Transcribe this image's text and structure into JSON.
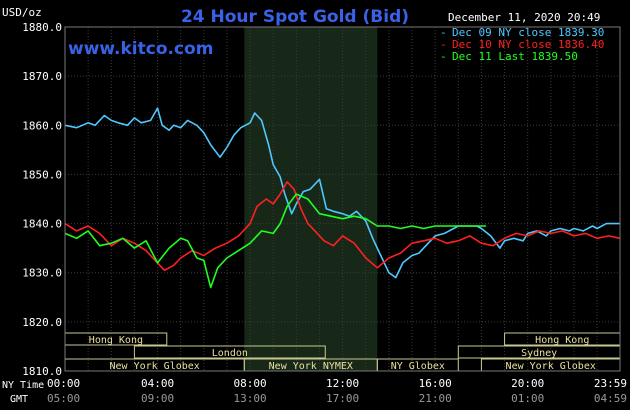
{
  "chart_data": {
    "type": "line",
    "title": "24 Hour Spot Gold (Bid)",
    "brand": "www.kitco.com",
    "timestamp": "December 11, 2020 20:49",
    "ylabel": "USD/oz",
    "ylim": [
      1810,
      1880
    ],
    "y_ticks": [
      "1880.0",
      "1870.0",
      "1860.0",
      "1850.0",
      "1840.0",
      "1830.0",
      "1820.0",
      "1810.0"
    ],
    "x_axis": {
      "ny_label": "NY Time",
      "gmt_label": "GMT",
      "ny_ticks": [
        "00:00",
        "04:00",
        "08:00",
        "12:00",
        "16:00",
        "20:00",
        "23:59"
      ],
      "gmt_ticks": [
        "05:00",
        "09:00",
        "13:00",
        "17:00",
        "21:00",
        "01:00",
        "04:59"
      ]
    },
    "grid": true,
    "legend_position": "top-right",
    "highlight_band_hours": [
      7.75,
      13.5
    ],
    "sessions": [
      {
        "label": "Hong Kong",
        "start": 0,
        "end": 4.4,
        "row": 0
      },
      {
        "label": "Hong Kong",
        "start": 19.0,
        "end": 23.99,
        "row": 0
      },
      {
        "label": "London",
        "start": 3.0,
        "end": 11.25,
        "row": 1
      },
      {
        "label": "Sydney",
        "start": 17.0,
        "end": 23.99,
        "row": 1
      },
      {
        "label": "New York Globex",
        "start": 0,
        "end": 7.75,
        "row": 2
      },
      {
        "label": "New York NYMEX",
        "start": 7.75,
        "end": 13.5,
        "row": 2
      },
      {
        "label": "NY Globex",
        "start": 13.5,
        "end": 17.0,
        "row": 2
      },
      {
        "label": "New York Globex",
        "start": 18.0,
        "end": 23.99,
        "row": 2
      }
    ],
    "series": [
      {
        "name": "Dec 09 NY close 1839.30",
        "color": "#4fc8ff",
        "x": [
          0,
          0.5,
          1,
          1.3,
          1.7,
          2,
          2.3,
          2.7,
          3,
          3.3,
          3.7,
          4,
          4.2,
          4.5,
          4.7,
          5,
          5.3,
          5.7,
          6,
          6.3,
          6.7,
          7,
          7.3,
          7.6,
          8,
          8.2,
          8.5,
          8.8,
          9,
          9.3,
          9.5,
          9.8,
          10,
          10.3,
          10.6,
          11,
          11.3,
          11.6,
          12,
          12.3,
          12.6,
          13,
          13.3,
          13.6,
          14,
          14.3,
          14.6,
          15,
          15.3,
          15.7,
          16,
          16.4,
          16.8,
          17,
          17.4,
          17.8,
          18,
          18.4,
          18.8,
          19,
          19.4,
          19.8,
          20,
          20.4,
          20.8,
          21,
          21.4,
          21.8,
          22,
          22.4,
          22.8,
          23,
          23.4,
          23.99
        ],
        "values": [
          1860.0,
          1859.5,
          1860.5,
          1860.0,
          1862.0,
          1861.0,
          1860.5,
          1860.0,
          1861.5,
          1860.5,
          1861.0,
          1863.5,
          1860.0,
          1859.0,
          1860.0,
          1859.5,
          1861.0,
          1860.0,
          1858.5,
          1856.0,
          1853.5,
          1855.5,
          1858.0,
          1859.5,
          1860.5,
          1862.5,
          1861.0,
          1856.0,
          1852.0,
          1849.5,
          1846.0,
          1842.0,
          1844.0,
          1846.5,
          1847.0,
          1849.0,
          1843.0,
          1842.5,
          1842.0,
          1841.5,
          1842.5,
          1840.5,
          1837.0,
          1834.0,
          1830.0,
          1829.0,
          1832.0,
          1833.5,
          1834.0,
          1836.0,
          1837.5,
          1838.0,
          1839.0,
          1839.5,
          1839.5,
          1839.5,
          1839.0,
          1837.5,
          1835.0,
          1836.5,
          1837.0,
          1836.5,
          1838.0,
          1838.5,
          1837.5,
          1838.5,
          1839.0,
          1838.5,
          1839.0,
          1838.5,
          1839.5,
          1839.0,
          1840.0,
          1840.0
        ]
      },
      {
        "name": "Dec 10 NY close 1836.40",
        "color": "#ff2020",
        "x": [
          0,
          0.5,
          1,
          1.5,
          2,
          2.5,
          3,
          3.5,
          4,
          4.3,
          4.7,
          5,
          5.5,
          6,
          6.5,
          7,
          7.5,
          8,
          8.3,
          8.7,
          9,
          9.3,
          9.6,
          9.9,
          10.2,
          10.5,
          10.8,
          11.2,
          11.6,
          12,
          12.5,
          13,
          13.5,
          14,
          14.5,
          15,
          15.5,
          16,
          16.5,
          17,
          17.5,
          18,
          18.5,
          19,
          19.5,
          20,
          20.5,
          21,
          21.5,
          22,
          22.5,
          23,
          23.5,
          23.99
        ],
        "values": [
          1840.0,
          1838.5,
          1839.5,
          1838.0,
          1835.5,
          1837.0,
          1836.0,
          1834.5,
          1832.0,
          1830.5,
          1831.5,
          1833.0,
          1834.5,
          1833.5,
          1835.0,
          1836.0,
          1837.5,
          1840.0,
          1843.5,
          1845.0,
          1844.0,
          1846.0,
          1848.5,
          1847.0,
          1843.0,
          1840.0,
          1838.5,
          1836.5,
          1835.5,
          1837.5,
          1836.0,
          1833.0,
          1831.0,
          1833.0,
          1834.0,
          1836.0,
          1836.5,
          1837.0,
          1836.0,
          1836.5,
          1837.5,
          1836.0,
          1835.5,
          1837.0,
          1838.0,
          1837.5,
          1838.5,
          1838.0,
          1838.5,
          1837.5,
          1838.0,
          1837.0,
          1837.5,
          1837.0
        ]
      },
      {
        "name": "Dec 11 Last 1839.50",
        "color": "#20ff20",
        "x": [
          0,
          0.5,
          1,
          1.5,
          2,
          2.5,
          3,
          3.5,
          4,
          4.5,
          5,
          5.3,
          5.7,
          6,
          6.3,
          6.6,
          7,
          7.5,
          8,
          8.5,
          9,
          9.3,
          9.6,
          10,
          10.5,
          11,
          11.5,
          12,
          12.5,
          13,
          13.5,
          14,
          14.5,
          15,
          15.5,
          16,
          16.5,
          17,
          17.5,
          18,
          18.2
        ],
        "values": [
          1838.0,
          1837.0,
          1838.5,
          1835.5,
          1836.0,
          1837.0,
          1835.0,
          1836.5,
          1832.0,
          1835.0,
          1837.0,
          1836.5,
          1833.0,
          1832.5,
          1827.0,
          1831.0,
          1833.0,
          1834.5,
          1836.0,
          1838.5,
          1838.0,
          1840.0,
          1843.5,
          1846.0,
          1845.0,
          1842.0,
          1841.5,
          1841.0,
          1841.5,
          1841.0,
          1839.5,
          1839.5,
          1839.0,
          1839.5,
          1839.0,
          1839.5,
          1839.5,
          1839.5,
          1839.5,
          1839.5,
          1839.5
        ]
      }
    ]
  }
}
